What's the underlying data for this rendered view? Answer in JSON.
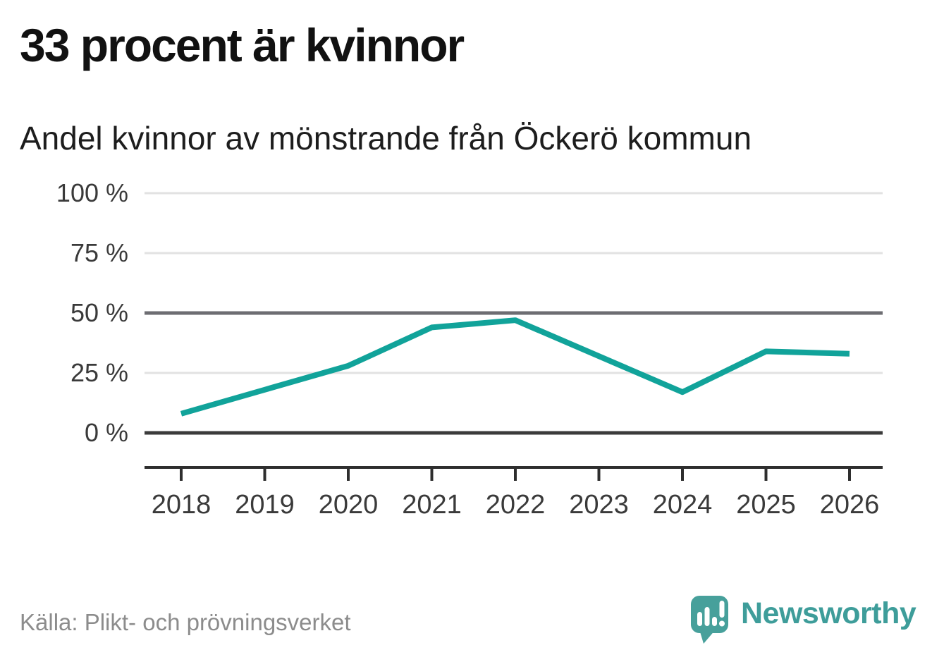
{
  "title": "33 procent är kvinnor",
  "subtitle": "Andel kvinnor av mönstrande från Öckerö kommun",
  "source": "Källa: Plikt- och prövningsverket",
  "branding": {
    "name": "Newsworthy",
    "logo_icon": "speech-bubble-bar-chart-exclamation-icon",
    "logo_color": "#47a09b",
    "wordmark_color": "#3e9d9a"
  },
  "colors": {
    "line": "#11a39a",
    "grid_light": "#e2e2e2",
    "grid_mid": "#6d6d72",
    "grid_zero": "#3b3b3b",
    "axis": "#2e2e2e",
    "tick_text": "#3a3a3a",
    "title_text": "#111111",
    "muted_text": "#8c8c8c"
  },
  "chart_data": {
    "type": "line",
    "title": "33 procent är kvinnor",
    "subtitle": "Andel kvinnor av mönstrande från Öckerö kommun",
    "categories": [
      "2018",
      "2019",
      "2020",
      "2021",
      "2022",
      "2023",
      "2024",
      "2025",
      "2026"
    ],
    "series": [
      {
        "name": "Andel kvinnor av mönstrande",
        "values": [
          8,
          18,
          28,
          44,
          47,
          32,
          17,
          34,
          33
        ]
      }
    ],
    "unit": "%",
    "ylim": [
      0,
      100
    ],
    "yticks": [
      0,
      25,
      50,
      75,
      100
    ],
    "ytick_labels": [
      "0 %",
      "25 %",
      "50 %",
      "75 %",
      "100 %"
    ],
    "xlabel": "",
    "ylabel": "",
    "grid": "horizontal",
    "legend": "none"
  }
}
